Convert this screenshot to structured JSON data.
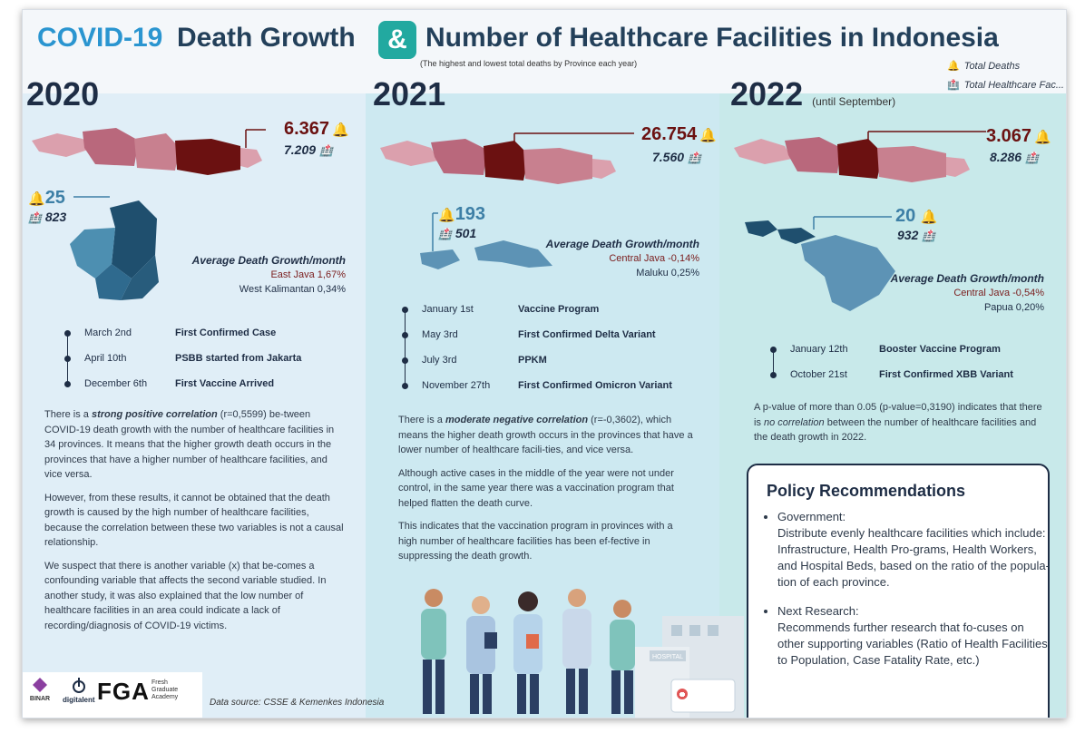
{
  "header": {
    "title_part1": "COVID-19",
    "title_part2": "Death Growth",
    "ampersand": "&",
    "title_part3": "Number of Healthcare Facilities in Indonesia",
    "subtitle": "(The highest and lowest total deaths by Province each year)",
    "legend": {
      "deaths": "Total Deaths",
      "facilities": "Total Healthcare Fac..."
    }
  },
  "icons": {
    "deaths": "bell-icon",
    "facilities": "hospital-icon"
  },
  "colors": {
    "highlight_red": "#6b1111",
    "low_blue": "#3d7fa6",
    "navy": "#1e2d45",
    "accent_teal": "#22a9a0",
    "title_blue": "#2a95d0"
  },
  "y2020": {
    "year": "2020",
    "highest": {
      "deaths": "6.367",
      "facilities": "7.209"
    },
    "lowest": {
      "deaths": "25",
      "facilities": "823"
    },
    "growth": {
      "heading": "Average Death Growth/month",
      "high": "East Java 1,67%",
      "low": "West Kalimantan 0,34%"
    },
    "timeline": [
      {
        "date": "March 2nd",
        "event": "First Confirmed Case"
      },
      {
        "date": "April 10th",
        "event": "PSBB started from Jakarta"
      },
      {
        "date": "December 6th",
        "event": "First Vaccine Arrived"
      }
    ],
    "text": {
      "p1_a": "There is a ",
      "p1_em": "strong positive correlation",
      "p1_b": " (r=0,5599) be-tween COVID-19 death growth with the number of healthcare facilities in 34 provinces. It means that the higher growth death occurs in the provinces that have a higher number of healthcare facilities, and vice versa.",
      "p2": "However, from these results, it cannot be obtained that the death growth is caused by the high number of healthcare facilities, because the correlation between these two variables is not a causal relationship.",
      "p3": "We suspect that there is another variable (x) that be-comes a confounding variable that affects the second variable studied. In another study, it was also explained that the low number of healthcare facilities in an area could indicate a lack of recording/diagnosis of COVID-19 victims."
    }
  },
  "y2021": {
    "year": "2021",
    "highest": {
      "deaths": "26.754",
      "facilities": "7.560"
    },
    "lowest": {
      "deaths": "193",
      "facilities": "501"
    },
    "growth": {
      "heading": "Average Death Growth/month",
      "high": "Central Java -0,14%",
      "low": "Maluku 0,25%"
    },
    "timeline": [
      {
        "date": "January 1st",
        "event": "Vaccine Program"
      },
      {
        "date": "May 3rd",
        "event": "First Confirmed Delta Variant"
      },
      {
        "date": "July 3rd",
        "event": "PPKM"
      },
      {
        "date": "November 27th",
        "event": "First Confirmed Omicron Variant"
      }
    ],
    "text": {
      "p1_a": "There is a ",
      "p1_em": "moderate negative correlation",
      "p1_b": " (r=-0,3602), which means the higher death growth occurs in the provinces that have a lower number of healthcare facili-ties, and vice versa.",
      "p2": "Although active cases in the middle of the year were not under control, in the same year there was a vaccination program that helped flatten the death curve.",
      "p3": "This indicates that the vaccination program in provinces with a high number of healthcare facilities has been ef-fective in suppressing the death growth."
    }
  },
  "y2022": {
    "year": "2022",
    "year_note": "(until September)",
    "highest": {
      "deaths": "3.067",
      "facilities": "8.286"
    },
    "lowest": {
      "deaths": "20",
      "facilities": "932"
    },
    "growth": {
      "heading": "Average Death Growth/month",
      "high": "Central Java -0,54%",
      "low": "Papua 0,20%"
    },
    "timeline": [
      {
        "date": "January 12th",
        "event": "Booster Vaccine Program"
      },
      {
        "date": "October 21st",
        "event": "First Confirmed XBB Variant"
      }
    ],
    "text": {
      "p1_a": "A p-value of more than 0.05 (p-value=0,3190) indicates that there is ",
      "p1_em": "no correlation",
      "p1_b": " between the number of healthcare facilities and the death growth in 2022."
    }
  },
  "policy": {
    "title": "Policy Recommendations",
    "items": [
      {
        "label": "Government:",
        "text": "Distribute evenly healthcare facilities which include: Infrastructure, Health Pro-grams, Health Workers, and Hospital Beds, based on the ratio of the popula-tion of each province."
      },
      {
        "label": "Next Research:",
        "text": "Recommends further research that fo-cuses on other supporting variables (Ratio of Health Facilities to Population, Case Fatality Rate, etc.)"
      }
    ]
  },
  "footer": {
    "logo_binar": "BINAR",
    "logo_digitalent": "digitalent",
    "logo_fga": "FGA",
    "logo_fga_sub": [
      "Fresh",
      "Graduate",
      "Academy"
    ],
    "source": "Data source: CSSE & Kemenkes Indonesia"
  },
  "illustration": {
    "hospital_sign": "HOSPITAL"
  }
}
